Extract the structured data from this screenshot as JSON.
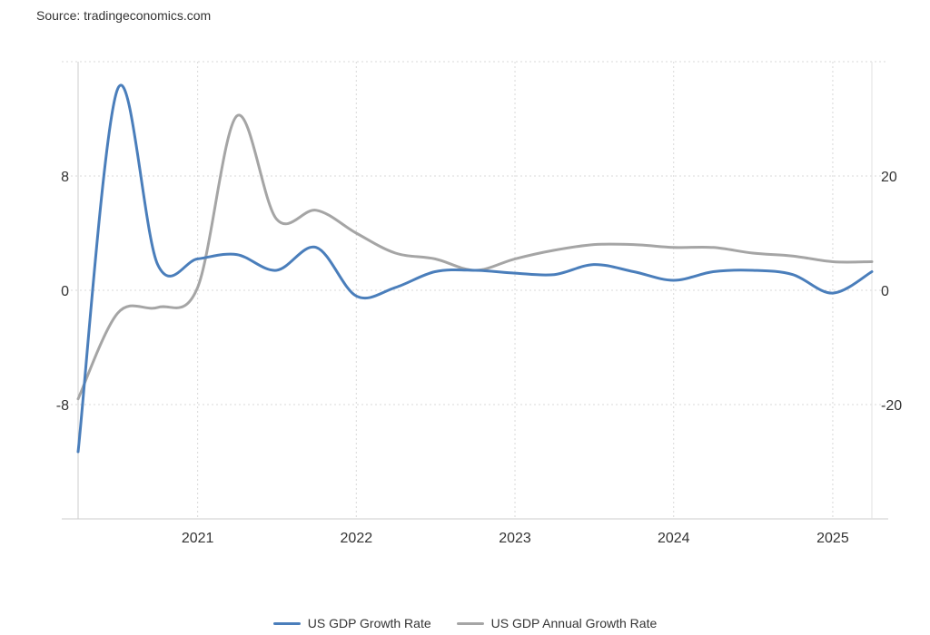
{
  "source": "Source: tradingeconomics.com",
  "chart_data": {
    "type": "line",
    "title": "",
    "xlabel": "",
    "ylabel": "",
    "grid": true,
    "legend_position": "bottom-center",
    "x_ticks": [
      "2021",
      "2022",
      "2023",
      "2024",
      "2025"
    ],
    "x_range": [
      "2020-04-01",
      "2025-04-01"
    ],
    "left_axis": {
      "ticks": [
        "8",
        "0",
        "-8"
      ],
      "tick_values": [
        8,
        0,
        -8
      ],
      "range": [
        -16,
        16
      ]
    },
    "right_axis": {
      "ticks": [
        "20",
        "0",
        "-20"
      ],
      "tick_values": [
        20,
        0,
        -20
      ],
      "range": [
        -40,
        40
      ]
    },
    "x": [
      "2020-04-01",
      "2020-07-01",
      "2020-10-01",
      "2021-01-01",
      "2021-04-01",
      "2021-07-01",
      "2021-10-01",
      "2022-01-01",
      "2022-04-01",
      "2022-07-01",
      "2022-10-01",
      "2023-01-01",
      "2023-04-01",
      "2023-07-01",
      "2023-10-01",
      "2024-01-01",
      "2024-04-01",
      "2024-07-01",
      "2024-10-01",
      "2025-01-01",
      "2025-04-01"
    ],
    "series": [
      {
        "name": "US GDP Growth Rate",
        "axis": "left",
        "color": "#4a7ebb",
        "values": [
          -11.3,
          14.1,
          1.8,
          2.2,
          2.5,
          1.4,
          3.0,
          -0.4,
          0.2,
          1.3,
          1.4,
          1.2,
          1.1,
          1.8,
          1.3,
          0.7,
          1.3,
          1.4,
          1.1,
          -0.2,
          1.3
        ]
      },
      {
        "name": "US GDP Annual Growth Rate",
        "axis": "right",
        "color": "#a5a5a5",
        "values": [
          -19,
          -4,
          -3,
          0.5,
          30.5,
          12.5,
          14.0,
          10.0,
          6.5,
          5.5,
          3.5,
          5.5,
          7.0,
          8.0,
          8.0,
          7.5,
          7.5,
          6.5,
          6.0,
          5.0,
          5.0
        ]
      }
    ]
  }
}
